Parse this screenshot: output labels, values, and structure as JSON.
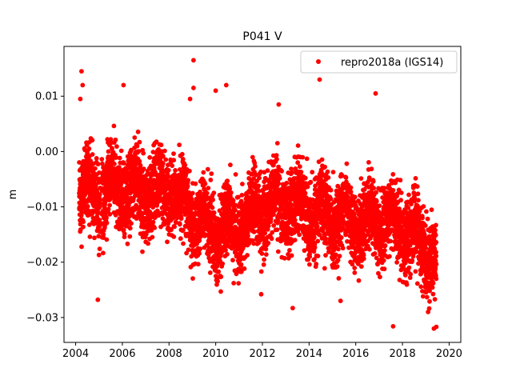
{
  "chart_data": {
    "type": "scatter",
    "title": "P041 V",
    "xlabel": "",
    "ylabel": "m",
    "xlim": [
      2003.5,
      2020.5
    ],
    "ylim": [
      -0.0345,
      0.019
    ],
    "x_ticks": [
      {
        "value": 2004,
        "label": "2004"
      },
      {
        "value": 2006,
        "label": "2006"
      },
      {
        "value": 2008,
        "label": "2008"
      },
      {
        "value": 2010,
        "label": "2010"
      },
      {
        "value": 2012,
        "label": "2012"
      },
      {
        "value": 2014,
        "label": "2014"
      },
      {
        "value": 2016,
        "label": "2016"
      },
      {
        "value": 2018,
        "label": "2018"
      },
      {
        "value": 2020,
        "label": "2020"
      }
    ],
    "y_ticks": [
      {
        "value": 0.01,
        "label": "0.01"
      },
      {
        "value": 0.0,
        "label": "0.00"
      },
      {
        "value": -0.01,
        "label": "−0.01"
      },
      {
        "value": -0.02,
        "label": "−0.02"
      },
      {
        "value": -0.03,
        "label": "−0.03"
      }
    ],
    "grid": false,
    "legend_position": "top-right",
    "series": [
      {
        "name": "repro2018a (IGS14)",
        "color": "#ff0000",
        "marker": "circle",
        "x_range": [
          2004.15,
          2019.45
        ],
        "trend_samples": [
          [
            2004.2,
            -0.007
          ],
          [
            2005.0,
            -0.008
          ],
          [
            2006.0,
            -0.006
          ],
          [
            2007.0,
            -0.008
          ],
          [
            2008.0,
            -0.007
          ],
          [
            2009.0,
            -0.011
          ],
          [
            2010.0,
            -0.015
          ],
          [
            2011.0,
            -0.014
          ],
          [
            2012.0,
            -0.01
          ],
          [
            2013.0,
            -0.009
          ],
          [
            2014.0,
            -0.011
          ],
          [
            2015.0,
            -0.012
          ],
          [
            2016.0,
            -0.013
          ],
          [
            2017.0,
            -0.012
          ],
          [
            2018.0,
            -0.014
          ],
          [
            2019.0,
            -0.017
          ],
          [
            2019.4,
            -0.02
          ]
        ],
        "outliers": [
          [
            2004.25,
            0.0145
          ],
          [
            2004.3,
            0.012
          ],
          [
            2004.2,
            0.0095
          ],
          [
            2006.05,
            0.012
          ],
          [
            2009.05,
            0.0165
          ],
          [
            2008.9,
            0.0095
          ],
          [
            2009.05,
            0.0115
          ],
          [
            2010.45,
            0.012
          ],
          [
            2010.0,
            0.011
          ],
          [
            2014.45,
            0.013
          ],
          [
            2016.85,
            0.0105
          ],
          [
            2012.7,
            0.0085
          ],
          [
            2004.95,
            -0.0268
          ],
          [
            2013.3,
            -0.0283
          ],
          [
            2017.6,
            -0.0316
          ],
          [
            2019.35,
            -0.032
          ],
          [
            2019.45,
            -0.0317
          ],
          [
            2011.95,
            -0.0258
          ],
          [
            2015.35,
            -0.027
          ]
        ]
      }
    ]
  }
}
